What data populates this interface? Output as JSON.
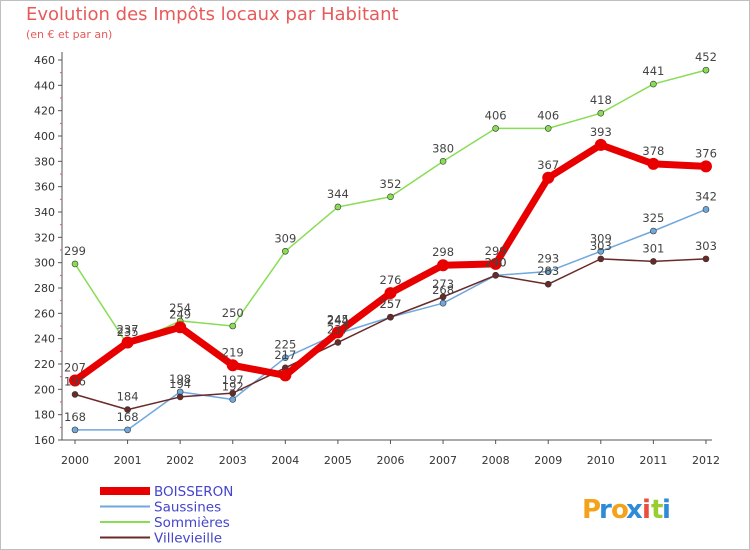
{
  "title": "Evolution des Impôts locaux par Habitant",
  "subtitle": "(en € et par an)",
  "brand": {
    "name": "Proxiti",
    "letters": [
      "P",
      "r",
      "o",
      "x",
      "i",
      "t",
      "i"
    ],
    "colors": [
      "#f5a21b",
      "#2f8bd8",
      "#f5a21b",
      "#2f8bd8",
      "#e94f3a",
      "#9acd32",
      "#2f8bd8"
    ]
  },
  "chart_data": {
    "type": "line",
    "title": "Evolution des Impôts locaux par Habitant",
    "ylabel": "(en € et par an)",
    "xlabel": "",
    "x": [
      "2000",
      "2001",
      "2002",
      "2003",
      "2004",
      "2005",
      "2006",
      "2007",
      "2008",
      "2009",
      "2010",
      "2011",
      "2012"
    ],
    "ylim": [
      160,
      460
    ],
    "yticks": [
      160,
      180,
      200,
      220,
      240,
      260,
      280,
      300,
      320,
      340,
      360,
      380,
      400,
      420,
      440,
      460
    ],
    "grid": "none",
    "legend_position": "bottom-left",
    "series": [
      {
        "name": "BOISSERON",
        "color": "#e80000",
        "width": 7,
        "marker": 6,
        "label_color": "#444444",
        "labels_shown": true,
        "values": [
          207,
          237,
          249,
          219,
          211,
          245,
          276,
          298,
          299,
          367,
          393,
          378,
          376
        ],
        "data_labels": [
          "207",
          "237",
          "249",
          "219",
          "",
          "245",
          "276",
          "298",
          "299",
          "367",
          "393",
          "378",
          "376"
        ]
      },
      {
        "name": "Saussines",
        "color": "#6fa8dc",
        "width": 1.5,
        "marker": 3,
        "label_color": "#444444",
        "labels_shown": true,
        "values": [
          168,
          168,
          198,
          192,
          225,
          244,
          257,
          268,
          290,
          293,
          309,
          325,
          342
        ],
        "data_labels": [
          "168",
          "168",
          "198",
          "192",
          "225",
          "244",
          "257",
          "268",
          "290",
          "293",
          "309",
          "325",
          "342"
        ]
      },
      {
        "name": "Sommières",
        "color": "#88dd55",
        "width": 1.5,
        "marker": 3,
        "label_color": "#444444",
        "labels_shown": true,
        "values": [
          299,
          235,
          254,
          250,
          309,
          344,
          352,
          380,
          406,
          406,
          418,
          441,
          452
        ],
        "data_labels": [
          "299",
          "235",
          "254",
          "250",
          "309",
          "344",
          "352",
          "380",
          "406",
          "406",
          "418",
          "441",
          "452"
        ]
      },
      {
        "name": "Villevieille",
        "color": "#6b2a2a",
        "width": 1.5,
        "marker": 3,
        "label_color": "#444444",
        "labels_shown": true,
        "values": [
          196,
          184,
          194,
          197,
          217,
          237,
          257,
          273,
          290,
          283,
          303,
          301,
          303
        ],
        "data_labels": [
          "196",
          "184",
          "194",
          "197",
          "217",
          "237",
          "257",
          "273",
          "290",
          "283",
          "303",
          "301",
          "303"
        ]
      }
    ],
    "legend_text_color": "#4444cc"
  }
}
